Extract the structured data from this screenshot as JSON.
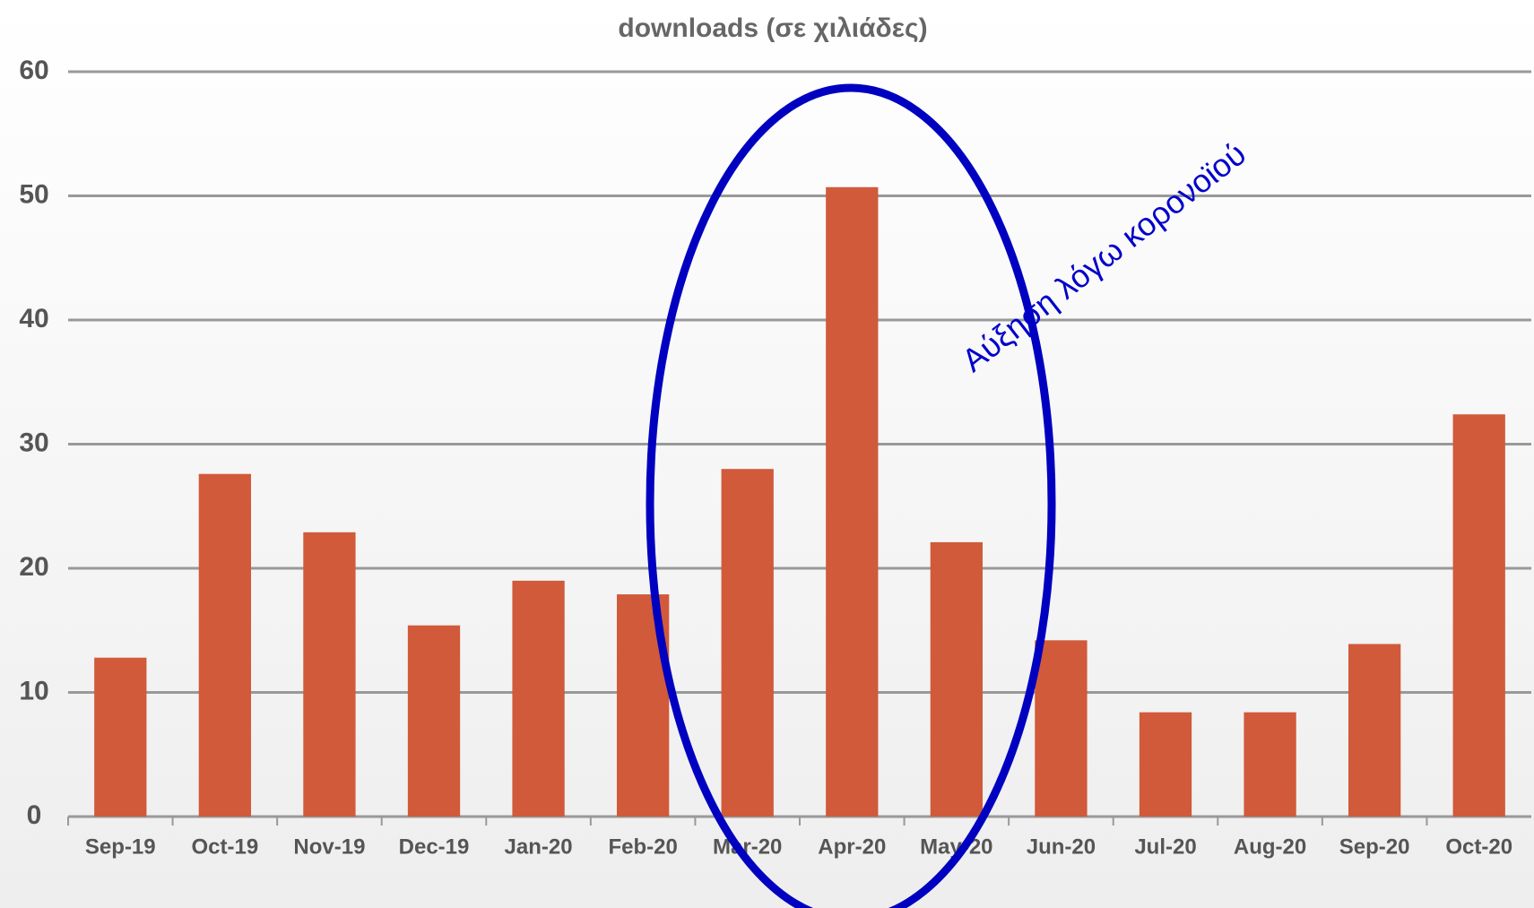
{
  "chart_data": {
    "type": "bar",
    "title": "downloads (σε χιλιάδες)",
    "categories": [
      "Sep-19",
      "Oct-19",
      "Nov-19",
      "Dec-19",
      "Jan-20",
      "Feb-20",
      "Mar-20",
      "Apr-20",
      "May-20",
      "Jun-20",
      "Jul-20",
      "Aug-20",
      "Sep-20",
      "Oct-20"
    ],
    "values": [
      12.8,
      27.6,
      22.9,
      15.4,
      19.0,
      17.9,
      28.0,
      50.7,
      22.1,
      14.2,
      8.4,
      8.4,
      13.9,
      32.4
    ],
    "color": "#d05a3a",
    "ylim": [
      0,
      60
    ],
    "yticks": [
      0,
      10,
      20,
      30,
      40,
      50,
      60
    ],
    "grid": true,
    "annotation": "Αύξηση λόγω κορονοϊού"
  }
}
